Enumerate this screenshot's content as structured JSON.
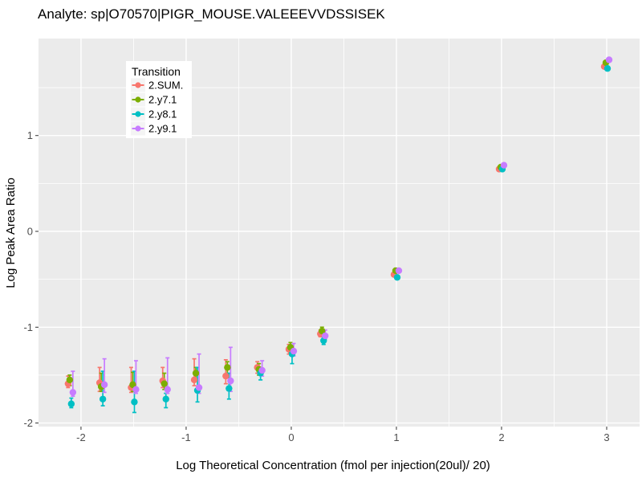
{
  "chart_data": {
    "type": "scatter",
    "title": "Analyte: sp|O70570|PIGR_MOUSE.VALEEEVVDSSISEK",
    "xlabel": "Log Theoretical Concentration (fmol per injection(20ul)/ 20)",
    "ylabel": "Log Peak Area Ratio",
    "legend_title": "Transition",
    "legend_position": "inside-top-left",
    "grid": true,
    "panel_bg": "#EBEBEB",
    "grid_color": "#FFFFFF",
    "tick_color": "#333333",
    "tick_label_color": "#4D4D4D",
    "legend_key_bg": "#F4F4F4",
    "xlim": [
      -2.404,
      3.313
    ],
    "ylim": [
      -2.037,
      2.012
    ],
    "x_major_ticks": [
      -2,
      -1,
      0,
      1,
      2,
      3
    ],
    "x_tick_labels": [
      "-2",
      "-1",
      "0",
      "1",
      "2",
      "3"
    ],
    "y_major_ticks": [
      1,
      0,
      -1,
      -2
    ],
    "y_tick_labels": [
      "1",
      "0",
      "-1",
      "-2"
    ],
    "x_minor_ticks": [
      -1.5,
      -0.5,
      0.5,
      1.5,
      2.5
    ],
    "y_minor_ticks": [
      1.5,
      0.5,
      -0.5,
      -1.5
    ],
    "x": [
      -2.1,
      -1.8,
      -1.5,
      -1.2,
      -0.9,
      -0.6,
      -0.3,
      0,
      0.3,
      1,
      2,
      3
    ],
    "series": [
      {
        "name": "2.SUM.",
        "color": "#F8766D",
        "y": [
          -1.59,
          -1.58,
          -1.63,
          -1.56,
          -1.55,
          -1.51,
          -1.42,
          -1.23,
          -1.07,
          -0.45,
          0.65,
          1.72
        ],
        "ymin": [
          -1.63,
          -1.67,
          -1.68,
          -1.63,
          -1.61,
          -1.59,
          -1.48,
          -1.28,
          -1.1,
          -0.45,
          0.65,
          1.72
        ],
        "ymax": [
          -1.51,
          -1.42,
          -1.42,
          -1.42,
          -1.33,
          -1.34,
          -1.36,
          -1.18,
          -1.03,
          -0.45,
          0.65,
          1.72
        ]
      },
      {
        "name": "2.y7.1",
        "color": "#7CAE00",
        "y": [
          -1.55,
          -1.62,
          -1.6,
          -1.59,
          -1.48,
          -1.42,
          -1.44,
          -1.21,
          -1.04,
          -0.41,
          0.67,
          1.76
        ],
        "ymin": [
          -1.61,
          -1.67,
          -1.67,
          -1.65,
          -1.55,
          -1.5,
          -1.5,
          -1.26,
          -1.07,
          -0.41,
          0.67,
          1.76
        ],
        "ymax": [
          -1.5,
          -1.48,
          -1.47,
          -1.48,
          -1.42,
          -1.36,
          -1.38,
          -1.16,
          -1.0,
          -0.41,
          0.67,
          1.76
        ]
      },
      {
        "name": "2.y8.1",
        "color": "#00BFC4",
        "y": [
          -1.8,
          -1.75,
          -1.78,
          -1.75,
          -1.66,
          -1.64,
          -1.48,
          -1.28,
          -1.14,
          -0.48,
          0.65,
          1.7
        ],
        "ymin": [
          -1.84,
          -1.82,
          -1.89,
          -1.84,
          -1.78,
          -1.75,
          -1.55,
          -1.38,
          -1.18,
          -0.48,
          0.65,
          1.7
        ],
        "ymax": [
          -1.74,
          -1.46,
          -1.46,
          -1.69,
          -1.42,
          -1.48,
          -1.42,
          -1.22,
          -1.1,
          -0.48,
          0.65,
          1.7
        ]
      },
      {
        "name": "2.y9.1",
        "color": "#C77CFF",
        "y": [
          -1.68,
          -1.6,
          -1.65,
          -1.65,
          -1.63,
          -1.56,
          -1.45,
          -1.25,
          -1.09,
          -0.41,
          0.69,
          1.79
        ],
        "ymin": [
          -1.72,
          -1.68,
          -1.69,
          -1.69,
          -1.69,
          -1.67,
          -1.51,
          -1.3,
          -1.12,
          -0.41,
          0.69,
          1.79
        ],
        "ymax": [
          -1.46,
          -1.33,
          -1.35,
          -1.32,
          -1.28,
          -1.21,
          -1.35,
          -1.17,
          -1.03,
          -0.41,
          0.69,
          1.79
        ]
      }
    ]
  }
}
